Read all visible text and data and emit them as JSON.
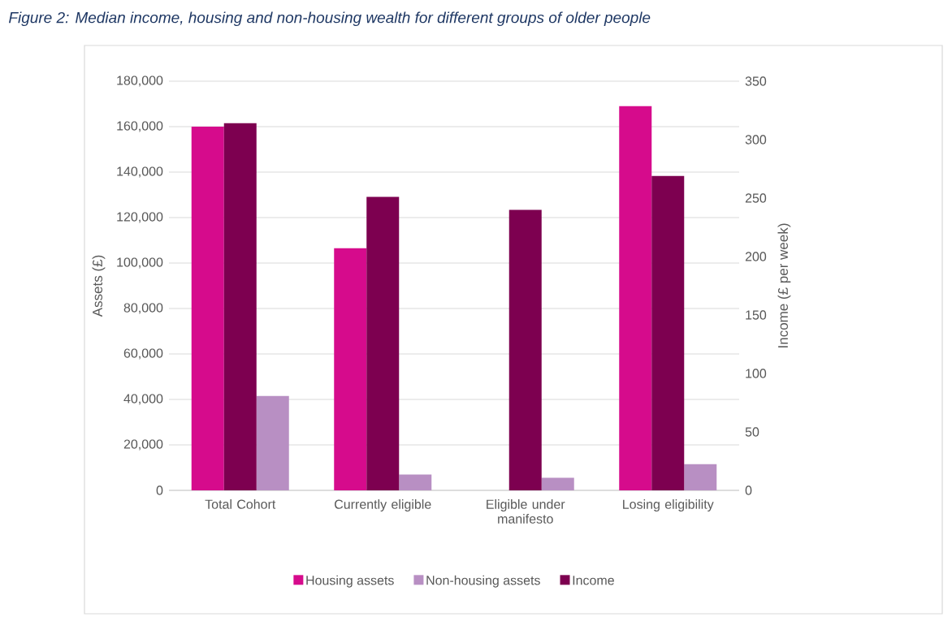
{
  "chart_data": {
    "type": "bar",
    "title": "Figure 2: Median income, housing and non-housing wealth for different groups of older people",
    "categories": [
      "Total Cohort",
      "Currently eligible",
      "Eligible under manifesto",
      "Losing eligibility"
    ],
    "series": [
      {
        "name": "Housing assets",
        "color": "#d60b8c",
        "values": [
          160000,
          106500,
          null,
          169000
        ]
      },
      {
        "name": "Non-housing assets",
        "color": "#b88fc3",
        "values": [
          41500,
          7000,
          5500,
          11500
        ]
      },
      {
        "name": "Income",
        "color": "#7d0050",
        "axis": "y2",
        "values": [
          314,
          251,
          240,
          269
        ]
      }
    ],
    "ylabel": "Assets (£)",
    "y2label": "Income (£ per week)",
    "ylim": [
      0,
      180000
    ],
    "yticks": [
      0,
      {
        "value": 20000,
        "label": "20,000"
      },
      {
        "value": 40000,
        "label": "40,000"
      },
      {
        "value": 60000,
        "label": "60,000"
      },
      {
        "value": 80000,
        "label": "80,000"
      },
      {
        "value": 100000,
        "label": "100,000"
      },
      {
        "value": 120000,
        "label": "120,000"
      },
      {
        "value": 140000,
        "label": "140,000"
      },
      {
        "value": 160000,
        "label": "160,000"
      },
      {
        "value": 180000,
        "label": "180,000"
      }
    ],
    "y2lim": [
      0,
      350
    ],
    "y2ticks": [
      0,
      50,
      100,
      150,
      200,
      250,
      300,
      350
    ],
    "grid": "y",
    "legend": "bottom"
  }
}
